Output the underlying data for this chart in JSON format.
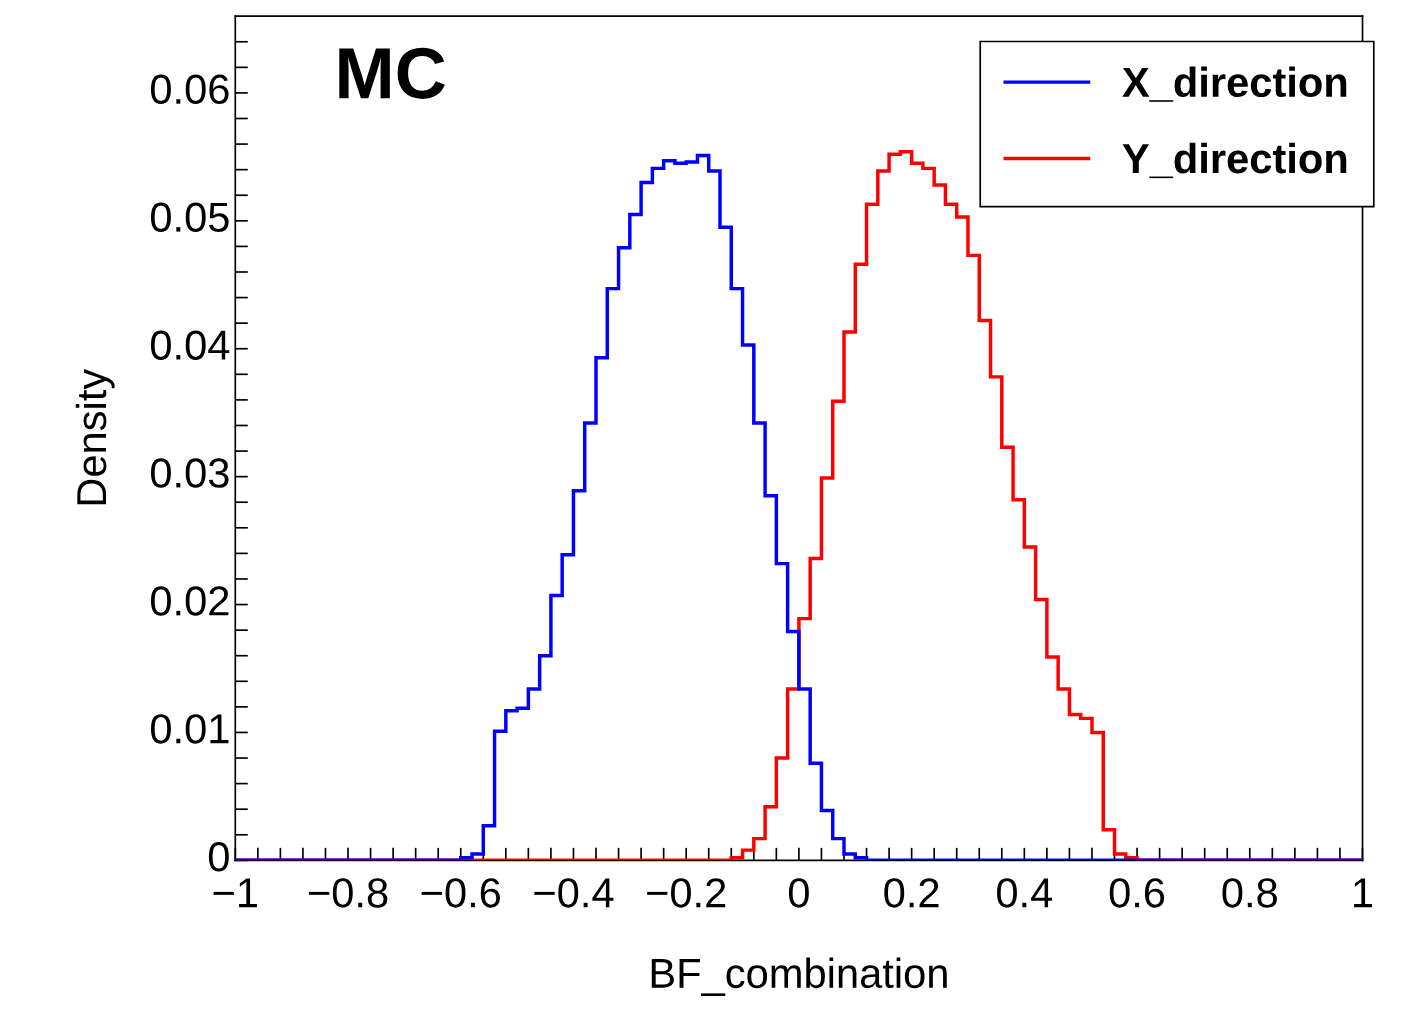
{
  "chart_data": {
    "type": "histogram",
    "xlabel": "BF_combination",
    "ylabel": "Density",
    "annotations": [
      "MC"
    ],
    "bins": [
      -1.0,
      -0.98,
      -0.96,
      -0.94,
      -0.92,
      -0.9,
      -0.88,
      -0.86,
      -0.84,
      -0.82,
      -0.8,
      -0.78,
      -0.76,
      -0.74,
      -0.72,
      -0.7,
      -0.68,
      -0.66,
      -0.64,
      -0.62,
      -0.6,
      -0.58,
      -0.56,
      -0.54,
      -0.52,
      -0.5,
      -0.48,
      -0.46,
      -0.44,
      -0.42,
      -0.4,
      -0.38,
      -0.36,
      -0.34,
      -0.32,
      -0.3,
      -0.28,
      -0.26,
      -0.24,
      -0.22,
      -0.2,
      -0.18,
      -0.16,
      -0.14,
      -0.12,
      -0.1,
      -0.08,
      -0.06,
      -0.04,
      -0.02,
      0.0,
      0.02,
      0.04,
      0.06,
      0.08,
      0.1,
      0.12,
      0.14,
      0.16,
      0.18,
      0.2,
      0.22,
      0.24,
      0.26,
      0.28,
      0.3,
      0.32,
      0.34,
      0.36,
      0.38,
      0.4,
      0.42,
      0.44,
      0.46,
      0.48,
      0.5,
      0.52,
      0.54,
      0.56,
      0.58,
      0.6,
      0.62,
      0.64,
      0.66,
      0.68,
      0.7,
      0.72,
      0.74,
      0.76,
      0.78,
      0.8,
      0.82,
      0.84,
      0.86,
      0.88,
      0.9,
      0.92,
      0.94,
      0.96,
      0.98,
      1.0
    ],
    "series": [
      {
        "name": "X_direction",
        "color": "#0000ff",
        "values": [
          0,
          0,
          0,
          0,
          0,
          0,
          0,
          0,
          0,
          0,
          0,
          0,
          0,
          0,
          0,
          0,
          0,
          0,
          0,
          0,
          0.0002,
          0.0005,
          0.0027,
          0.0101,
          0.0117,
          0.0119,
          0.0134,
          0.016,
          0.0207,
          0.0239,
          0.0289,
          0.0342,
          0.0393,
          0.0447,
          0.0479,
          0.0505,
          0.053,
          0.0541,
          0.0547,
          0.0545,
          0.0546,
          0.0551,
          0.0539,
          0.0495,
          0.0447,
          0.0403,
          0.0342,
          0.0285,
          0.0232,
          0.0179,
          0.0134,
          0.0076,
          0.0039,
          0.0017,
          0.0005,
          0.0002,
          0,
          0,
          0,
          0,
          0,
          0,
          0,
          0,
          0,
          0,
          0,
          0,
          0,
          0,
          0,
          0,
          0,
          0,
          0,
          0,
          0,
          0,
          0,
          0,
          0,
          0,
          0,
          0,
          0,
          0,
          0,
          0,
          0,
          0,
          0,
          0,
          0,
          0,
          0,
          0,
          0,
          0,
          0,
          0
        ]
      },
      {
        "name": "Y_direction",
        "color": "#ff0000",
        "values": [
          0,
          0,
          0,
          0,
          0,
          0,
          0,
          0,
          0,
          0,
          0,
          0,
          0,
          0,
          0,
          0,
          0,
          0,
          0,
          0,
          0,
          0,
          0,
          0,
          0,
          0,
          0,
          0,
          0,
          0,
          0,
          0,
          0,
          0,
          0,
          0,
          0,
          0,
          0,
          0,
          0,
          0,
          0,
          0,
          0.0002,
          0.0008,
          0.0017,
          0.0042,
          0.008,
          0.0134,
          0.0189,
          0.0236,
          0.0299,
          0.0359,
          0.0413,
          0.0466,
          0.0513,
          0.0539,
          0.0552,
          0.0554,
          0.0545,
          0.0541,
          0.0528,
          0.0513,
          0.0503,
          0.0473,
          0.0422,
          0.0378,
          0.0323,
          0.0282,
          0.0245,
          0.0204,
          0.0159,
          0.0134,
          0.0114,
          0.0111,
          0.01,
          0.0024,
          0.0005,
          0.0002,
          0,
          0,
          0,
          0,
          0,
          0,
          0,
          0,
          0,
          0,
          0,
          0,
          0,
          0,
          0,
          0,
          0,
          0,
          0,
          0
        ]
      }
    ],
    "xlim": [
      -1,
      1
    ],
    "ylim": [
      0,
      0.066
    ],
    "xticks": [
      {
        "value": -1,
        "label": "−1"
      },
      {
        "value": -0.96,
        "label": null
      },
      {
        "value": -0.92,
        "label": null
      },
      {
        "value": -0.88,
        "label": null
      },
      {
        "value": -0.84,
        "label": null
      },
      {
        "value": -0.8,
        "label": "−0.8"
      },
      {
        "value": -0.76,
        "label": null
      },
      {
        "value": -0.72,
        "label": null
      },
      {
        "value": -0.68,
        "label": null
      },
      {
        "value": -0.64,
        "label": null
      },
      {
        "value": -0.6,
        "label": "−0.6"
      },
      {
        "value": -0.56,
        "label": null
      },
      {
        "value": -0.52,
        "label": null
      },
      {
        "value": -0.48,
        "label": null
      },
      {
        "value": -0.44,
        "label": null
      },
      {
        "value": -0.4,
        "label": "−0.4"
      },
      {
        "value": -0.36,
        "label": null
      },
      {
        "value": -0.32,
        "label": null
      },
      {
        "value": -0.28,
        "label": null
      },
      {
        "value": -0.24,
        "label": null
      },
      {
        "value": -0.2,
        "label": "−0.2"
      },
      {
        "value": -0.16,
        "label": null
      },
      {
        "value": -0.12,
        "label": null
      },
      {
        "value": -0.08,
        "label": null
      },
      {
        "value": -0.04,
        "label": null
      },
      0,
      {
        "value": 0.04,
        "label": null
      },
      {
        "value": 0.08,
        "label": null
      },
      {
        "value": 0.12,
        "label": null
      },
      {
        "value": 0.16,
        "label": null
      },
      0.2,
      {
        "value": 0.24,
        "label": null
      },
      {
        "value": 0.28,
        "label": null
      },
      {
        "value": 0.32,
        "label": null
      },
      {
        "value": 0.36,
        "label": null
      },
      0.4,
      {
        "value": 0.44,
        "label": null
      },
      {
        "value": 0.48,
        "label": null
      },
      {
        "value": 0.52,
        "label": null
      },
      {
        "value": 0.56,
        "label": null
      },
      0.6,
      {
        "value": 0.64,
        "label": null
      },
      {
        "value": 0.68,
        "label": null
      },
      {
        "value": 0.72,
        "label": null
      },
      {
        "value": 0.76,
        "label": null
      },
      0.8,
      {
        "value": 0.84,
        "label": null
      },
      {
        "value": 0.88,
        "label": null
      },
      {
        "value": 0.92,
        "label": null
      },
      {
        "value": 0.96,
        "label": null
      },
      1
    ],
    "yticks": [
      0,
      {
        "value": 0.002,
        "label": null
      },
      {
        "value": 0.004,
        "label": null
      },
      {
        "value": 0.006,
        "label": null
      },
      {
        "value": 0.008,
        "label": null
      },
      0.01,
      {
        "value": 0.012,
        "label": null
      },
      {
        "value": 0.014,
        "label": null
      },
      {
        "value": 0.016,
        "label": null
      },
      {
        "value": 0.018,
        "label": null
      },
      0.02,
      {
        "value": 0.022,
        "label": null
      },
      {
        "value": 0.024,
        "label": null
      },
      {
        "value": 0.026,
        "label": null
      },
      {
        "value": 0.028,
        "label": null
      },
      0.03,
      {
        "value": 0.032,
        "label": null
      },
      {
        "value": 0.034,
        "label": null
      },
      {
        "value": 0.036,
        "label": null
      },
      {
        "value": 0.038,
        "label": null
      },
      0.04,
      {
        "value": 0.042,
        "label": null
      },
      {
        "value": 0.044,
        "label": null
      },
      {
        "value": 0.046,
        "label": null
      },
      {
        "value": 0.048,
        "label": null
      },
      0.05,
      {
        "value": 0.052,
        "label": null
      },
      {
        "value": 0.054,
        "label": null
      },
      {
        "value": 0.056,
        "label": null
      },
      {
        "value": 0.058,
        "label": null
      },
      0.06,
      {
        "value": 0.062,
        "label": null
      },
      {
        "value": 0.064,
        "label": null
      }
    ],
    "legend": "top right",
    "grid": false
  }
}
